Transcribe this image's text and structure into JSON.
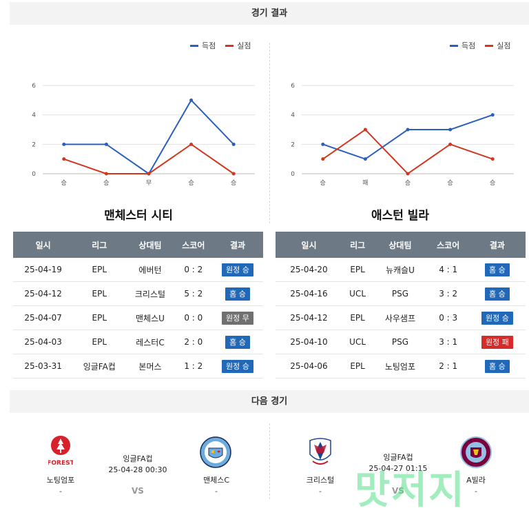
{
  "results_header": "경기 결과",
  "next_header": "다음 경기",
  "legend": {
    "score": "득점",
    "conceded": "실점",
    "score_color": "#2a5fbf",
    "conceded_color": "#d3351e"
  },
  "chart_data": [
    {
      "type": "line",
      "categories": [
        "승",
        "승",
        "무",
        "승",
        "승"
      ],
      "series": [
        {
          "name": "득점",
          "values": [
            2,
            2,
            0,
            5,
            2
          ]
        },
        {
          "name": "실점",
          "values": [
            1,
            0,
            0,
            2,
            0
          ]
        }
      ],
      "ylim": [
        0,
        6
      ],
      "yticks": [
        "0",
        "2",
        "4",
        "6"
      ],
      "legend_position": "top-right",
      "grid": true
    },
    {
      "type": "line",
      "categories": [
        "승",
        "패",
        "승",
        "승",
        "승"
      ],
      "series": [
        {
          "name": "득점",
          "values": [
            2,
            1,
            3,
            3,
            4
          ]
        },
        {
          "name": "실점",
          "values": [
            1,
            3,
            0,
            2,
            1
          ]
        }
      ],
      "ylim": [
        0,
        6
      ],
      "yticks": [
        "0",
        "2",
        "4",
        "6"
      ],
      "legend_position": "top-right",
      "grid": true
    }
  ],
  "teams": {
    "left": {
      "name": "맨체스터 시티",
      "headers": [
        "일시",
        "리그",
        "상대팀",
        "스코어",
        "결과"
      ],
      "rows": [
        [
          "25-04-19",
          "EPL",
          "에버턴",
          "0 : 2",
          "원정 승"
        ],
        [
          "25-04-12",
          "EPL",
          "크리스털",
          "5 : 2",
          "홈 승"
        ],
        [
          "25-04-07",
          "EPL",
          "맨체스U",
          "0 : 0",
          "원정 무"
        ],
        [
          "25-04-03",
          "EPL",
          "레스터C",
          "2 : 0",
          "홈 승"
        ],
        [
          "25-03-31",
          "잉글FA컵",
          "본머스",
          "1 : 2",
          "원정 승"
        ]
      ],
      "result_types": [
        "win",
        "win",
        "draw",
        "win",
        "win"
      ]
    },
    "right": {
      "name": "애스턴 빌라",
      "headers": [
        "일시",
        "리그",
        "상대팀",
        "스코어",
        "결과"
      ],
      "rows": [
        [
          "25-04-20",
          "EPL",
          "뉴캐슬U",
          "4 : 1",
          "홈 승"
        ],
        [
          "25-04-16",
          "UCL",
          "PSG",
          "3 : 2",
          "홈 승"
        ],
        [
          "25-04-12",
          "EPL",
          "사우샘프",
          "0 : 3",
          "원정 승"
        ],
        [
          "25-04-10",
          "UCL",
          "PSG",
          "3 : 1",
          "원정 패"
        ],
        [
          "25-04-06",
          "EPL",
          "노팅엄포",
          "2 : 1",
          "홈 승"
        ]
      ],
      "result_types": [
        "win",
        "win",
        "win",
        "loss",
        "win"
      ]
    }
  },
  "next_matches": [
    {
      "league": "잉글FA컵",
      "datetime": "25-04-28 00:30",
      "home": "노팅엄포",
      "away": "맨체스C",
      "home_score": "-",
      "away_score": "-",
      "vs": "VS",
      "home_crest_text": "FOREST"
    },
    {
      "league": "잉글FA컵",
      "datetime": "25-04-27 01:15",
      "home": "크리스털",
      "away": "A빌라",
      "home_score": "-",
      "away_score": "-",
      "vs": "VS"
    }
  ]
}
